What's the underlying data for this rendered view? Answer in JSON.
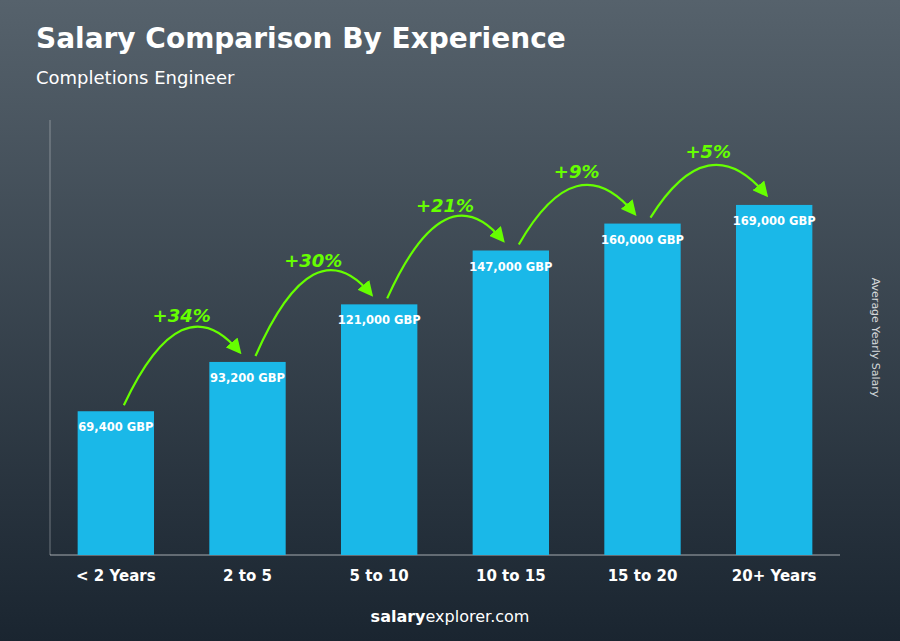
{
  "chart_data": {
    "type": "bar",
    "title": "Salary Comparison By Experience",
    "subtitle": "Completions Engineer",
    "y_label": "Average Yearly Salary",
    "categories": [
      "< 2 Years",
      "2 to 5",
      "5 to 10",
      "10 to 15",
      "15 to 20",
      "20+ Years"
    ],
    "values": [
      69400,
      93200,
      121000,
      147000,
      160000,
      169000
    ],
    "value_labels": [
      "69,400 GBP",
      "93,200 GBP",
      "121,000 GBP",
      "147,000 GBP",
      "160,000 GBP",
      "169,000 GBP"
    ],
    "data_labels": true,
    "color": "#1ab8e8",
    "annotations": [
      {
        "text": "+34%",
        "color": "#66ff00"
      },
      {
        "text": "+30%",
        "color": "#66ff00"
      },
      {
        "text": "+21%",
        "color": "#66ff00"
      },
      {
        "text": "+9%",
        "color": "#66ff00"
      },
      {
        "text": "+5%",
        "color": "#66ff00"
      }
    ],
    "footer": [
      "salary",
      "explorer.com"
    ],
    "ylim": [
      0,
      210000
    ],
    "tick_labels": "x",
    "grid": false
  }
}
